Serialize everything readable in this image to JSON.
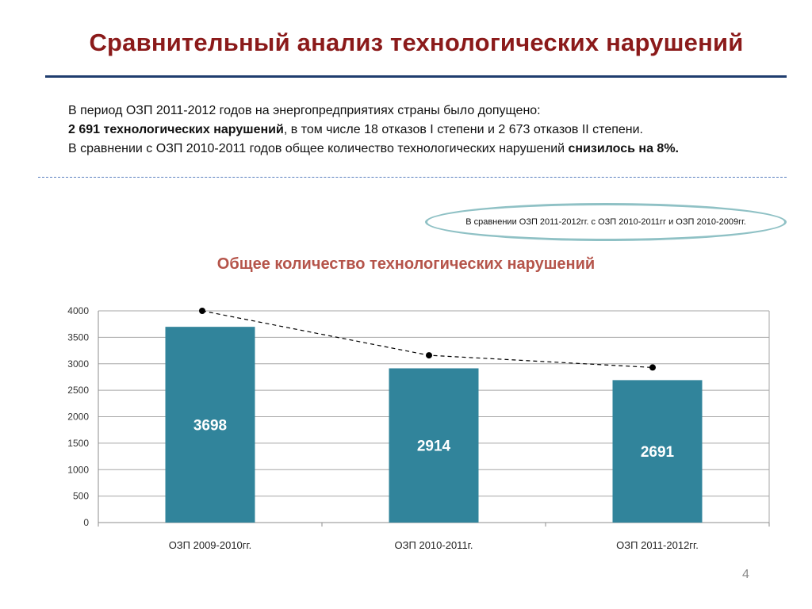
{
  "slide": {
    "title": "Сравнительный анализ технологических нарушений",
    "page_number": "4"
  },
  "intro": {
    "line1": "В период ОЗП 2011-2012 годов на энергопредприятиях страны было допущено:",
    "line2_bold": "2 691 технологических нарушений",
    "line2_rest": ", в том числе 18 отказов I степени и 2 673 отказов II степени.",
    "line3_start": "В сравнении с ОЗП 2010-2011 годов общее количество технологических нарушений ",
    "line3_bold": "снизилось на 8%."
  },
  "compare_note": "В сравнении ОЗП 2011-2012гг. с ОЗП 2010-2011гг и ОЗП 2010-2009гг.",
  "chart_data": {
    "type": "bar",
    "title": "Общее количество технологических нарушений",
    "categories": [
      "ОЗП 2009-2010гг.",
      "ОЗП 2010-2011г.",
      "ОЗП 2011-2012гг."
    ],
    "values": [
      3698,
      2914,
      2691
    ],
    "data_labels": [
      "3698",
      "2914",
      "2691"
    ],
    "trend_points": [
      4000,
      3160,
      2930
    ],
    "ylim": [
      0,
      4000
    ],
    "yticks": [
      0,
      500,
      1000,
      1500,
      2000,
      2500,
      3000,
      3500,
      4000
    ],
    "grid": true,
    "bar_color": "#31849b",
    "trend_style": "dashed line with markers",
    "xlabel": "",
    "ylabel": ""
  }
}
